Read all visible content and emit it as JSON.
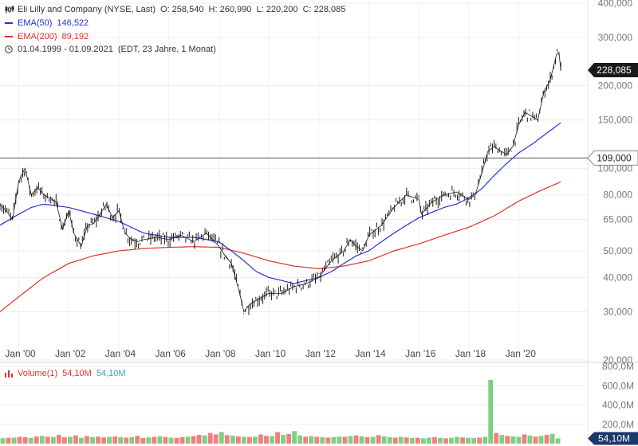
{
  "header": {
    "title": "Eli Lilly and Company (NYSE, Last)",
    "ohlc": "O: 258,540  H: 260,990  L: 220,200  C: 228,085",
    "ema50_label": "EMA(50)",
    "ema50_value": "146,522",
    "ema200_label": "EMA(200)",
    "ema200_value": "89,192",
    "range": "01.04.1999 - 01.09.2021",
    "range_info": "(EDT, 23 Jahre, 1 Monat)"
  },
  "volume_header": {
    "label": "Volume(1)",
    "value_red": "54,10M",
    "value_green": "54,10M"
  },
  "colors": {
    "ema50": "#2432d6",
    "ema200": "#e0332b",
    "volume_up": "#7fcf7f",
    "volume_down": "#f08080"
  },
  "chart_data": [
    {
      "type": "line",
      "scale": "log",
      "ylim": [
        20,
        400
      ],
      "y_ticks": [
        "400,000",
        "300,000",
        "200,000",
        "150,000",
        "100,000",
        "80,000",
        "65,000",
        "50,000",
        "40,000",
        "30,000",
        "20,000"
      ],
      "y_tick_values": [
        400,
        300,
        200,
        150,
        100,
        80,
        65,
        50,
        40,
        30,
        20
      ],
      "x_ticks": [
        "Jan '00",
        "Jan '02",
        "Jan '04",
        "Jan '06",
        "Jan '08",
        "Jan '10",
        "Jan '12",
        "Jan '14",
        "Jan '16",
        "Jan '18",
        "Jan '20"
      ],
      "x_tick_years": [
        2000,
        2002,
        2004,
        2006,
        2008,
        2010,
        2012,
        2014,
        2016,
        2018,
        2020
      ],
      "xlim": [
        1999.25,
        2022.75
      ],
      "last_price_label": "228,085",
      "last_price": 228.085,
      "hline_label": "109,000",
      "hline": 109,
      "series": [
        {
          "name": "Eli Lilly and Company",
          "color": "#222222",
          "x": [
            1999.25,
            1999.5,
            1999.75,
            2000.0,
            2000.25,
            2000.5,
            2000.75,
            2000.9,
            2001.0,
            2001.25,
            2001.5,
            2001.75,
            2002.0,
            2002.2,
            2002.5,
            2002.75,
            2003.0,
            2003.25,
            2003.5,
            2003.75,
            2004.0,
            2004.25,
            2004.5,
            2004.75,
            2005.0,
            2005.5,
            2006.0,
            2006.5,
            2007.0,
            2007.5,
            2008.0,
            2008.25,
            2008.5,
            2008.8,
            2009.0,
            2009.25,
            2009.5,
            2009.75,
            2010.0,
            2010.5,
            2011.0,
            2011.5,
            2012.0,
            2012.5,
            2013.0,
            2013.25,
            2013.5,
            2013.75,
            2014.0,
            2014.5,
            2015.0,
            2015.5,
            2016.0,
            2016.1,
            2016.5,
            2017.0,
            2017.5,
            2018.0,
            2018.25,
            2018.5,
            2018.75,
            2019.0,
            2019.5,
            2019.75,
            2020.0,
            2020.25,
            2020.5,
            2020.75,
            2021.0,
            2021.25,
            2021.5,
            2021.6,
            2021.67
          ],
          "values": [
            74,
            70,
            65,
            90,
            100,
            80,
            85,
            82,
            80,
            78,
            75,
            60,
            70,
            58,
            52,
            62,
            63,
            68,
            74,
            66,
            70,
            58,
            55,
            54,
            55,
            56,
            55,
            57,
            54,
            58,
            52,
            48,
            45,
            36,
            30,
            32,
            33,
            34,
            35,
            35,
            37,
            38,
            40,
            46,
            50,
            55,
            52,
            50,
            57,
            62,
            72,
            80,
            77,
            68,
            75,
            80,
            82,
            77,
            80,
            95,
            115,
            120,
            112,
            120,
            145,
            160,
            155,
            150,
            190,
            210,
            260,
            265,
            228
          ]
        },
        {
          "name": "EMA(50)",
          "color": "#2432d6",
          "x": [
            1999.25,
            2000.0,
            2000.5,
            2001.0,
            2001.5,
            2002.0,
            2003.0,
            2004.0,
            2005.0,
            2006.0,
            2007.0,
            2008.0,
            2008.5,
            2009.0,
            2009.5,
            2010.0,
            2010.5,
            2011.0,
            2011.5,
            2012.0,
            2012.5,
            2013.0,
            2013.5,
            2014.0,
            2014.5,
            2015.0,
            2015.5,
            2016.0,
            2016.5,
            2017.0,
            2017.5,
            2018.0,
            2018.5,
            2019.0,
            2019.5,
            2020.0,
            2020.5,
            2021.0,
            2021.67
          ],
          "values": [
            62,
            68,
            72,
            74,
            73,
            72,
            68,
            64,
            58,
            56,
            56,
            54,
            50,
            46,
            42,
            40,
            39,
            38,
            39,
            40,
            42,
            45,
            48,
            50,
            54,
            58,
            62,
            66,
            69,
            72,
            74,
            78,
            84,
            94,
            104,
            114,
            122,
            132,
            146.5
          ]
        },
        {
          "name": "EMA(200)",
          "color": "#e0332b",
          "x": [
            1999.25,
            2000.0,
            2001.0,
            2002.0,
            2003.0,
            2004.0,
            2005.0,
            2006.0,
            2007.0,
            2008.0,
            2009.0,
            2010.0,
            2011.0,
            2012.0,
            2013.0,
            2014.0,
            2015.0,
            2016.0,
            2017.0,
            2018.0,
            2019.0,
            2020.0,
            2020.5,
            2021.0,
            2021.67
          ],
          "values": [
            30,
            34,
            40,
            45,
            48,
            50,
            51,
            51.5,
            51.8,
            51.5,
            49,
            46,
            44,
            43,
            44,
            46,
            50,
            53,
            57,
            61,
            67,
            76,
            80,
            84,
            89.2
          ]
        }
      ]
    },
    {
      "type": "bar",
      "name": "Volume(1)",
      "ylim": [
        0,
        800
      ],
      "y_ticks": [
        "800,0M",
        "600,0M",
        "400,0M",
        "200,0M"
      ],
      "y_tick_values": [
        800,
        600,
        400,
        200
      ],
      "last_label": "54,10M",
      "values_millions": [
        55,
        60,
        62,
        70,
        66,
        58,
        75,
        80,
        72,
        68,
        90,
        65,
        70,
        85,
        60,
        78,
        66,
        72,
        64,
        70,
        74,
        68,
        62,
        66,
        80,
        58,
        64,
        70,
        75,
        68,
        62,
        58,
        66,
        72,
        78,
        90,
        85,
        110,
        95,
        120,
        88,
        82,
        75,
        70,
        68,
        72,
        95,
        80,
        78,
        120,
        90,
        100,
        130,
        85,
        72,
        78,
        70,
        66,
        62,
        68,
        72,
        70,
        78,
        85,
        75,
        66,
        70,
        88,
        74,
        66,
        62,
        70,
        64,
        58,
        60,
        55,
        62,
        66,
        58,
        54,
        60,
        70,
        64,
        60,
        58,
        62,
        70,
        660,
        110,
        90,
        80,
        75,
        70,
        95,
        85,
        72,
        80,
        90,
        100,
        54
      ],
      "up": [
        1,
        0,
        1,
        0,
        0,
        1,
        0,
        1,
        0,
        1,
        0,
        0,
        1,
        0,
        1,
        0,
        1,
        0,
        0,
        1,
        0,
        1,
        0,
        1,
        0,
        0,
        1,
        0,
        1,
        0,
        1,
        0,
        0,
        1,
        0,
        0,
        1,
        0,
        0,
        1,
        0,
        1,
        0,
        1,
        0,
        1,
        0,
        0,
        1,
        0,
        1,
        0,
        1,
        1,
        0,
        1,
        0,
        1,
        0,
        1,
        1,
        0,
        1,
        0,
        1,
        0,
        1,
        0,
        1,
        1,
        0,
        1,
        0,
        1,
        0,
        1,
        1,
        0,
        1,
        0,
        1,
        1,
        0,
        1,
        1,
        0,
        1,
        1,
        0,
        1,
        0,
        1,
        1,
        0,
        1,
        0,
        1,
        0,
        1,
        1
      ]
    }
  ]
}
